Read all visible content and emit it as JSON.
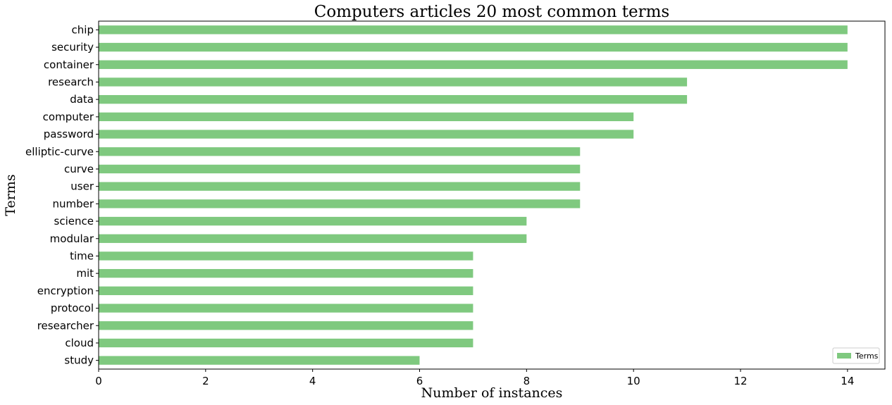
{
  "chart_data": {
    "type": "bar",
    "orientation": "horizontal",
    "title": "Computers articles 20 most common terms",
    "xlabel": "Number of instances",
    "ylabel": "Terms",
    "xlim": [
      0,
      14.7
    ],
    "xticks": [
      0,
      2,
      4,
      6,
      8,
      10,
      12,
      14
    ],
    "grid": false,
    "legend_position": "bottom-right",
    "categories": [
      "chip",
      "security",
      "container",
      "research",
      "data",
      "computer",
      "password",
      "elliptic-curve",
      "curve",
      "user",
      "number",
      "science",
      "modular",
      "time",
      "mit",
      "encryption",
      "protocol",
      "researcher",
      "cloud",
      "study"
    ],
    "series": [
      {
        "name": "Terms",
        "color": "#7fc97f",
        "values": [
          14,
          14,
          14,
          11,
          11,
          10,
          10,
          9,
          9,
          9,
          9,
          8,
          8,
          7,
          7,
          7,
          7,
          7,
          7,
          6
        ]
      }
    ]
  }
}
